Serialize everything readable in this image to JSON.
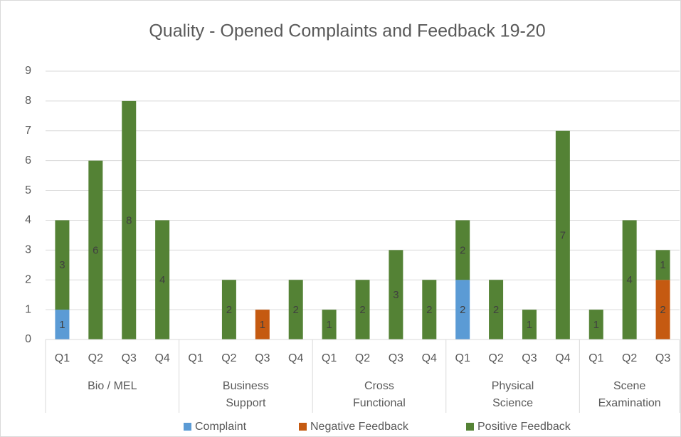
{
  "chart_data": {
    "type": "stacked_bar",
    "title": "Quality - Opened Complaints and Feedback 19-20",
    "groups": [
      {
        "label": [
          "Bio / MEL"
        ],
        "categories": [
          "Q1",
          "Q2",
          "Q3",
          "Q4"
        ]
      },
      {
        "label": [
          "Business",
          "Support"
        ],
        "categories": [
          "Q1",
          "Q2",
          "Q3",
          "Q4"
        ]
      },
      {
        "label": [
          "Cross",
          "Functional"
        ],
        "categories": [
          "Q1",
          "Q2",
          "Q3",
          "Q4"
        ]
      },
      {
        "label": [
          "Physical",
          "Science"
        ],
        "categories": [
          "Q1",
          "Q2",
          "Q3",
          "Q4"
        ]
      },
      {
        "label": [
          "Scene",
          "Examination"
        ],
        "categories": [
          "Q1",
          "Q2",
          "Q3"
        ]
      }
    ],
    "series": [
      {
        "name": "Complaint",
        "color": "#5b9bd5",
        "values": [
          1,
          null,
          null,
          null,
          null,
          null,
          null,
          null,
          null,
          null,
          null,
          null,
          2,
          null,
          null,
          null,
          null,
          null,
          null
        ]
      },
      {
        "name": "Negative Feedback",
        "color": "#c55a11",
        "values": [
          null,
          null,
          null,
          null,
          null,
          null,
          1,
          null,
          null,
          null,
          null,
          null,
          null,
          null,
          null,
          null,
          null,
          null,
          2
        ]
      },
      {
        "name": "Positive Feedback",
        "color": "#548235",
        "values": [
          3,
          6,
          8,
          4,
          null,
          2,
          null,
          2,
          1,
          2,
          3,
          2,
          2,
          2,
          1,
          7,
          1,
          4,
          1
        ]
      }
    ],
    "ylim": [
      0,
      9
    ],
    "yticks": [
      0,
      1,
      2,
      3,
      4,
      5,
      6,
      7,
      8,
      9
    ],
    "grid": true,
    "legend": "bottom"
  }
}
